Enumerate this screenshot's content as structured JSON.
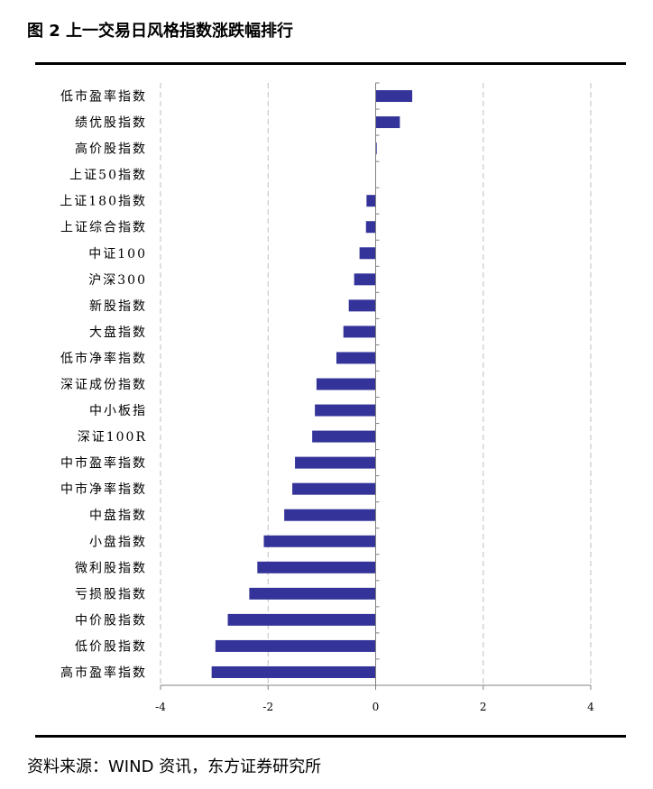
{
  "figure_title": "图 2 上一交易日风格指数涨跌幅排行",
  "source": "资料来源：WIND 资讯，东方证券研究所",
  "colors": {
    "bar": "#33339a",
    "grid": "#bfbfbf",
    "axis": "#808080"
  },
  "chart_data": {
    "type": "bar",
    "orientation": "horizontal",
    "title": "",
    "xlabel": "",
    "ylabel": "",
    "xlim": [
      -4,
      4
    ],
    "xticks": [
      -4,
      -2,
      0,
      2,
      4
    ],
    "xtick_labels": [
      "-4",
      "-2",
      "0",
      "2",
      "4"
    ],
    "grid": "vertical-dashed",
    "categories": [
      "低市盈率指数",
      "绩优股指数",
      "高价股指数",
      "上证50指数",
      "上证180指数",
      "上证综合指数",
      "中证100",
      "沪深300",
      "新股指数",
      "大盘指数",
      "低市净率指数",
      "深证成份指数",
      "中小板指",
      "深证100R",
      "中市盈率指数",
      "中市净率指数",
      "中盘指数",
      "小盘指数",
      "微利股指数",
      "亏损股指数",
      "中价股指数",
      "低价股指数",
      "高市盈率指数"
    ],
    "values": [
      0.68,
      0.45,
      0.02,
      0.0,
      -0.17,
      -0.18,
      -0.3,
      -0.4,
      -0.5,
      -0.6,
      -0.73,
      -1.1,
      -1.13,
      -1.18,
      -1.5,
      -1.55,
      -1.7,
      -2.08,
      -2.2,
      -2.35,
      -2.75,
      -2.98,
      -3.05
    ]
  }
}
